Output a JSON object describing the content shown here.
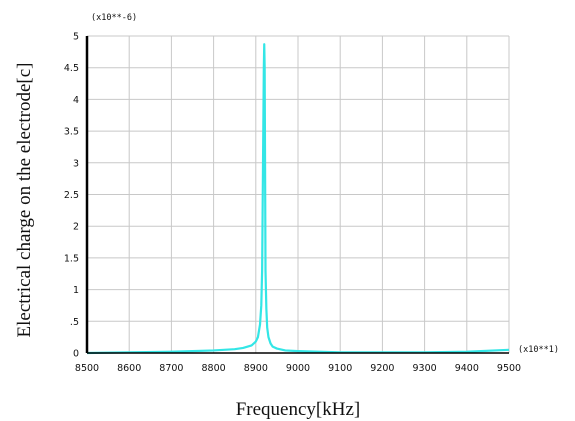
{
  "chart_data": {
    "type": "line",
    "title": "",
    "xlabel": "Frequency[kHz]",
    "ylabel": "Electrical charge on the electrode[c]",
    "x_multiplier": "(x10**1)",
    "y_multiplier": "(x10**-6)",
    "xlim": [
      8500,
      9500
    ],
    "ylim": [
      0,
      5
    ],
    "x_ticks": [
      8500,
      8600,
      8700,
      8800,
      8900,
      9000,
      9100,
      9200,
      9300,
      9400,
      9500
    ],
    "x_tick_labels": [
      "8500",
      "8600",
      "8700",
      "8800",
      "8900",
      "9000",
      "9100",
      "9200",
      "9300",
      "9400",
      "9500"
    ],
    "y_ticks": [
      0,
      0.5,
      1,
      1.5,
      2,
      2.5,
      3,
      3.5,
      4,
      4.5,
      5
    ],
    "y_tick_labels": [
      "0",
      ".5",
      "1",
      "1.5",
      "2",
      "2.5",
      "3",
      "3.5",
      "4",
      "4.5",
      "5"
    ],
    "grid": true,
    "legend": "none",
    "series": [
      {
        "color": "#33e6e6",
        "x": [
          8500,
          8600,
          8700,
          8750,
          8800,
          8850,
          8870,
          8890,
          8900,
          8905,
          8910,
          8913,
          8915,
          8917,
          8919,
          8920,
          8921,
          8922,
          8923,
          8925,
          8927,
          8930,
          8935,
          8940,
          8950,
          8970,
          9000,
          9050,
          9100,
          9200,
          9300,
          9400,
          9500
        ],
        "y": [
          0.0,
          0.01,
          0.02,
          0.03,
          0.04,
          0.06,
          0.08,
          0.12,
          0.18,
          0.25,
          0.45,
          0.75,
          1.3,
          2.9,
          4.5,
          4.87,
          4.5,
          2.9,
          1.3,
          0.7,
          0.4,
          0.25,
          0.15,
          0.1,
          0.07,
          0.04,
          0.03,
          0.02,
          0.01,
          0.01,
          0.01,
          0.02,
          0.05
        ]
      }
    ],
    "colors": {
      "frame": "#000000",
      "grid": "#c8c8c8",
      "series": "#33e6e6"
    }
  }
}
